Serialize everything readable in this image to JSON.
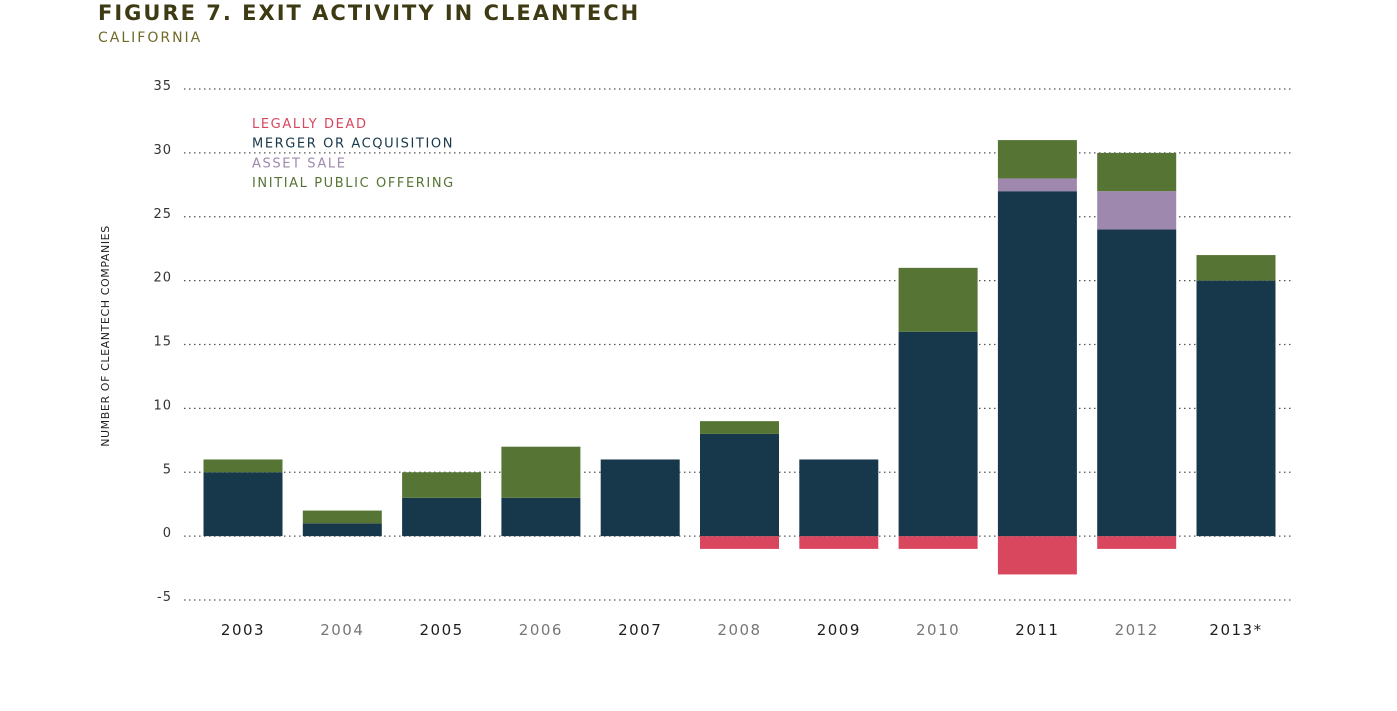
{
  "header": {
    "title": "FIGURE 7. EXIT ACTIVITY IN CLEANTECH",
    "subtitle": "CALIFORNIA"
  },
  "chart_data": {
    "type": "bar",
    "stacked": true,
    "title": "FIGURE 7. EXIT ACTIVITY IN CLEANTECH",
    "subtitle": "CALIFORNIA",
    "xlabel": "",
    "ylabel": "NUMBER OF CLEANTECH COMPANIES",
    "ylim": [
      -5,
      35
    ],
    "yticks": [
      "35",
      "30",
      "25",
      "20",
      "15",
      "10",
      "5",
      "0",
      "-5"
    ],
    "ytick_values": [
      35,
      30,
      25,
      20,
      15,
      10,
      5,
      0,
      -5
    ],
    "grid": "horizontal dotted",
    "legend_position": "top-left",
    "categories": [
      "2003",
      "2004",
      "2005",
      "2006",
      "2007",
      "2008",
      "2009",
      "2010",
      "2011",
      "2012",
      "2013*"
    ],
    "category_colors": [
      "#1e1e1e",
      "#777777",
      "#1e1e1e",
      "#777777",
      "#1e1e1e",
      "#777777",
      "#1e1e1e",
      "#777777",
      "#1e1e1e",
      "#777777",
      "#1e1e1e"
    ],
    "series": [
      {
        "name": "LEGALLY DEAD",
        "color": "#d9475f",
        "values": [
          0,
          0,
          0,
          0,
          0,
          -1,
          -1,
          -1,
          -3,
          -1,
          0
        ]
      },
      {
        "name": "MERGER OR ACQUISITION",
        "color": "#17384a",
        "values": [
          5,
          1,
          3,
          3,
          6,
          8,
          6,
          16,
          27,
          24,
          20
        ]
      },
      {
        "name": "ASSET SALE",
        "color": "#9e88ad",
        "values": [
          0,
          0,
          0,
          0,
          0,
          0,
          0,
          0,
          1,
          3,
          0
        ]
      },
      {
        "name": "INITIAL PUBLIC OFFERING",
        "color": "#567434",
        "values": [
          1,
          1,
          2,
          4,
          0,
          1,
          0,
          5,
          3,
          3,
          2
        ]
      }
    ]
  }
}
